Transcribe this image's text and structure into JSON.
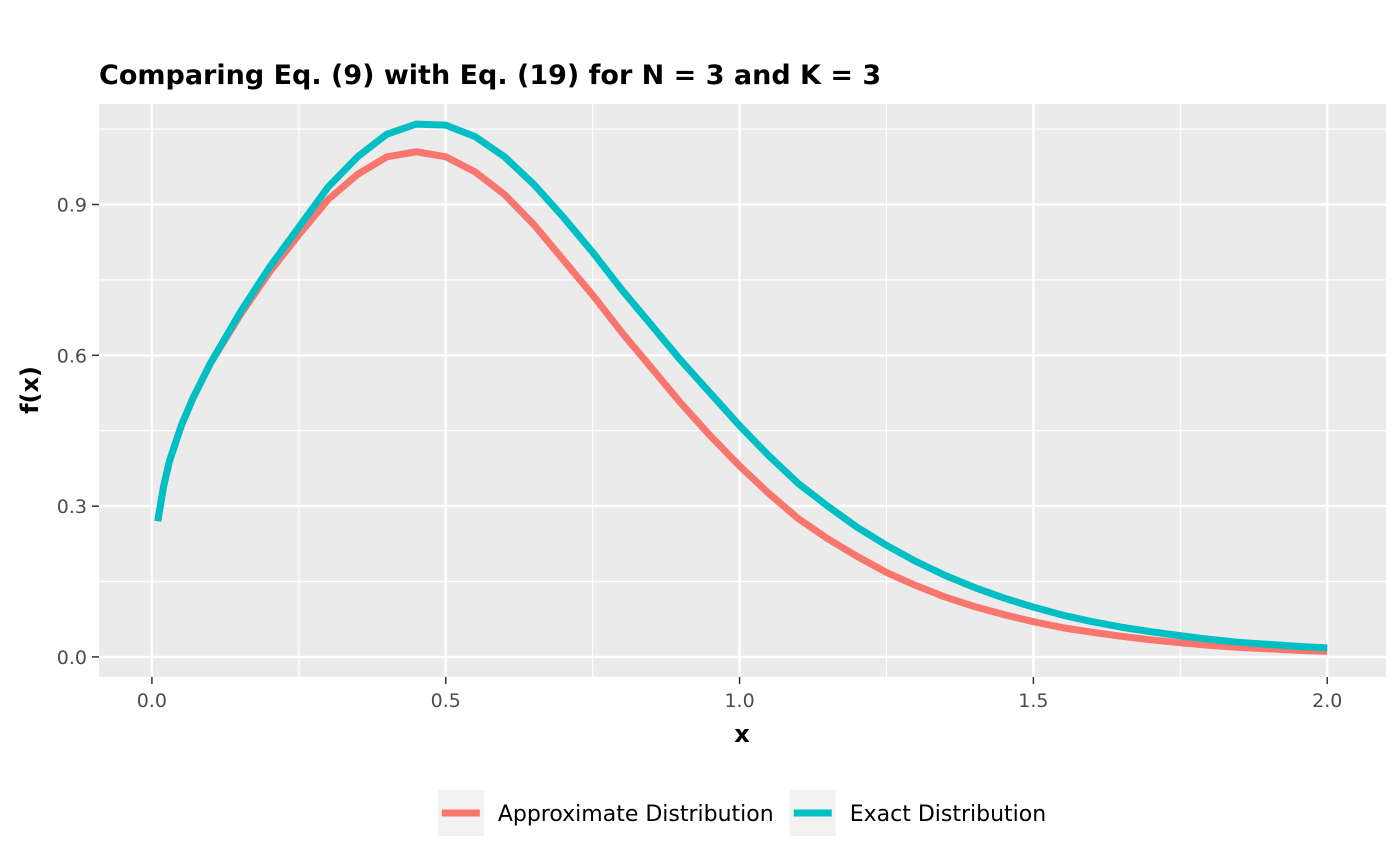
{
  "chart_data": {
    "type": "line",
    "title": "Comparing Eq. (9) with Eq. (19) for N = 3 and K = 3",
    "xlabel": "x",
    "ylabel": "f(x)",
    "xlim": [
      -0.09,
      2.1
    ],
    "ylim": [
      -0.04,
      1.1
    ],
    "x_ticks": [
      0.0,
      0.5,
      1.0,
      1.5,
      2.0
    ],
    "x_tick_labels": [
      "0.0",
      "0.5",
      "1.0",
      "1.5",
      "2.0"
    ],
    "y_ticks": [
      0.0,
      0.3,
      0.6,
      0.9
    ],
    "y_tick_labels": [
      "0.0",
      "0.3",
      "0.6",
      "0.9"
    ],
    "grid": true,
    "legend_position": "bottom",
    "series": [
      {
        "name": "Approximate Distribution",
        "color": "#F8766D",
        "x": [
          0.01,
          0.02,
          0.03,
          0.05,
          0.07,
          0.1,
          0.15,
          0.2,
          0.25,
          0.3,
          0.35,
          0.4,
          0.45,
          0.5,
          0.55,
          0.6,
          0.65,
          0.7,
          0.75,
          0.8,
          0.85,
          0.9,
          0.95,
          1.0,
          1.05,
          1.1,
          1.15,
          1.2,
          1.25,
          1.3,
          1.35,
          1.4,
          1.45,
          1.5,
          1.55,
          1.6,
          1.65,
          1.7,
          1.75,
          1.8,
          1.85,
          1.9,
          1.95,
          2.0
        ],
        "y": [
          0.27,
          0.34,
          0.39,
          0.46,
          0.515,
          0.585,
          0.68,
          0.765,
          0.84,
          0.91,
          0.96,
          0.995,
          1.005,
          0.995,
          0.965,
          0.92,
          0.86,
          0.79,
          0.72,
          0.645,
          0.575,
          0.505,
          0.44,
          0.38,
          0.325,
          0.275,
          0.235,
          0.2,
          0.168,
          0.142,
          0.119,
          0.1,
          0.084,
          0.07,
          0.058,
          0.049,
          0.041,
          0.034,
          0.028,
          0.023,
          0.019,
          0.016,
          0.013,
          0.011
        ]
      },
      {
        "name": "Exact Distribution",
        "color": "#00BFC4",
        "x": [
          0.01,
          0.02,
          0.03,
          0.05,
          0.07,
          0.1,
          0.15,
          0.2,
          0.25,
          0.3,
          0.35,
          0.4,
          0.45,
          0.5,
          0.55,
          0.6,
          0.65,
          0.7,
          0.75,
          0.8,
          0.85,
          0.9,
          0.95,
          1.0,
          1.05,
          1.1,
          1.15,
          1.2,
          1.25,
          1.3,
          1.35,
          1.4,
          1.45,
          1.5,
          1.55,
          1.6,
          1.65,
          1.7,
          1.75,
          1.8,
          1.85,
          1.9,
          1.95,
          2.0
        ],
        "y": [
          0.27,
          0.34,
          0.39,
          0.46,
          0.515,
          0.585,
          0.685,
          0.775,
          0.855,
          0.935,
          0.995,
          1.04,
          1.06,
          1.058,
          1.035,
          0.995,
          0.94,
          0.875,
          0.805,
          0.73,
          0.66,
          0.59,
          0.525,
          0.46,
          0.4,
          0.345,
          0.3,
          0.258,
          0.222,
          0.19,
          0.162,
          0.138,
          0.117,
          0.099,
          0.083,
          0.07,
          0.059,
          0.05,
          0.042,
          0.035,
          0.029,
          0.025,
          0.021,
          0.018
        ]
      }
    ]
  }
}
